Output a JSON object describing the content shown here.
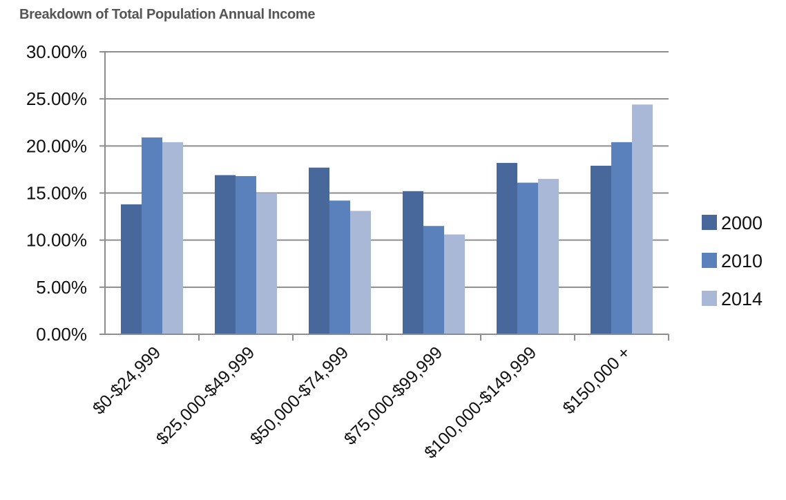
{
  "chart_data": {
    "type": "bar",
    "title": "Breakdown of Total Population Annual Income",
    "xlabel": "",
    "ylabel": "",
    "ylim": [
      0,
      30
    ],
    "yticks": [
      "0.00%",
      "5.00%",
      "10.00%",
      "15.00%",
      "20.00%",
      "25.00%",
      "30.00%"
    ],
    "grid": true,
    "legend_position": "right",
    "categories": [
      "$0-$24,999",
      "$25,000-$49,999",
      "$50,000-$74,999",
      "$75,000-$99,999",
      "$100,000-$149,999",
      "$150,000 +"
    ],
    "series": [
      {
        "name": "2000",
        "color": "#48689c",
        "values": [
          13.8,
          16.9,
          17.7,
          15.2,
          18.2,
          17.9
        ]
      },
      {
        "name": "2010",
        "color": "#5a81bb",
        "values": [
          20.9,
          16.8,
          14.2,
          11.5,
          16.1,
          20.4
        ]
      },
      {
        "name": "2014",
        "color": "#a9b8d6",
        "values": [
          20.4,
          15.0,
          13.1,
          10.6,
          16.5,
          24.4
        ]
      }
    ]
  }
}
